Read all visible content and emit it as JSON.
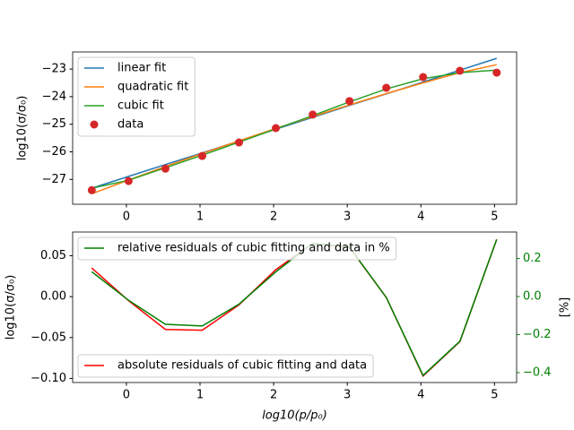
{
  "chart_data": [
    {
      "type": "line",
      "ylabel": "log10(σ/σ₀)",
      "x": [
        -0.47,
        0.03,
        0.53,
        1.03,
        1.53,
        2.03,
        2.53,
        3.03,
        3.53,
        4.03,
        4.53,
        5.03
      ],
      "xlim": [
        -0.73,
        5.3
      ],
      "xticks": [
        0,
        1,
        2,
        3,
        4,
        5
      ],
      "ylim": [
        -27.9,
        -22.38
      ],
      "yticks": [
        {
          "value": -27,
          "label": "−27"
        },
        {
          "value": -26,
          "label": "−26"
        },
        {
          "value": -25,
          "label": "−25"
        },
        {
          "value": -24,
          "label": "−24"
        },
        {
          "value": -23,
          "label": "−23"
        }
      ],
      "legend": "upper left",
      "series": [
        {
          "name": "linear fit",
          "color": "#1f77b4",
          "style": "line",
          "values": [
            -27.32,
            -26.89,
            -26.46,
            -26.04,
            -25.61,
            -25.18,
            -24.75,
            -24.32,
            -23.9,
            -23.47,
            -23.04,
            -22.61
          ]
        },
        {
          "name": "quadratic fit",
          "color": "#ff7f0e",
          "style": "line",
          "values": [
            -27.52,
            -27.02,
            -26.53,
            -26.06,
            -25.6,
            -25.15,
            -24.72,
            -24.3,
            -23.89,
            -23.5,
            -23.13,
            -22.84
          ]
        },
        {
          "name": "cubic fit",
          "color": "#2ca02c",
          "style": "line",
          "values": [
            -27.32,
            -27.03,
            -26.58,
            -26.12,
            -25.65,
            -25.17,
            -24.69,
            -24.19,
            -23.72,
            -23.35,
            -23.13,
            -23.04
          ]
        },
        {
          "name": "data",
          "color": "#d62728",
          "style": "points",
          "values": [
            -27.39,
            -27.06,
            -26.61,
            -26.15,
            -25.66,
            -25.14,
            -24.65,
            -24.16,
            -23.68,
            -23.29,
            -23.06,
            -23.13
          ]
        }
      ]
    },
    {
      "type": "line",
      "xlabel": "log10(p/p₀)",
      "ylabel": "log10(σ/σ₀)",
      "y2label": "[%]",
      "x": [
        -0.47,
        0.03,
        0.53,
        1.03,
        1.53,
        2.03,
        2.53,
        3.03,
        3.53,
        4.03,
        4.53,
        5.03
      ],
      "xlim": [
        -0.73,
        5.3
      ],
      "xticks": [
        0,
        1,
        2,
        3,
        4,
        5
      ],
      "ylim": [
        -0.105,
        0.079
      ],
      "yticks": [
        {
          "value": -0.1,
          "label": "−0.10"
        },
        {
          "value": -0.05,
          "label": "−0.05"
        },
        {
          "value": 0,
          "label": "0.00"
        },
        {
          "value": 0.05,
          "label": "0.05"
        }
      ],
      "y2lim": [
        -0.452,
        0.339
      ],
      "y2ticks": [
        {
          "value": -0.4,
          "label": "−0.4"
        },
        {
          "value": -0.2,
          "label": "−0.2"
        },
        {
          "value": 0,
          "label": "0.0"
        },
        {
          "value": 0.2,
          "label": "0.2"
        }
      ],
      "y2color": "#008000",
      "series": [
        {
          "name": "absolute residuals of cubic fitting and data",
          "color": "#ff0000",
          "style": "line",
          "legend": "lower left",
          "values": [
            0.035,
            -0.005,
            -0.04,
            -0.041,
            -0.01,
            0.033,
            0.065,
            0.06,
            -0.001,
            -0.097,
            -0.055,
            0.07
          ]
        },
        {
          "name": "relative residuals of cubic fitting and data in %",
          "color": "#008000",
          "style": "line",
          "axis": "y2",
          "legend": "upper left",
          "values": [
            0.13,
            -0.02,
            -0.146,
            -0.155,
            -0.04,
            0.13,
            0.28,
            0.26,
            -0.005,
            -0.415,
            -0.235,
            0.3
          ]
        }
      ]
    }
  ]
}
